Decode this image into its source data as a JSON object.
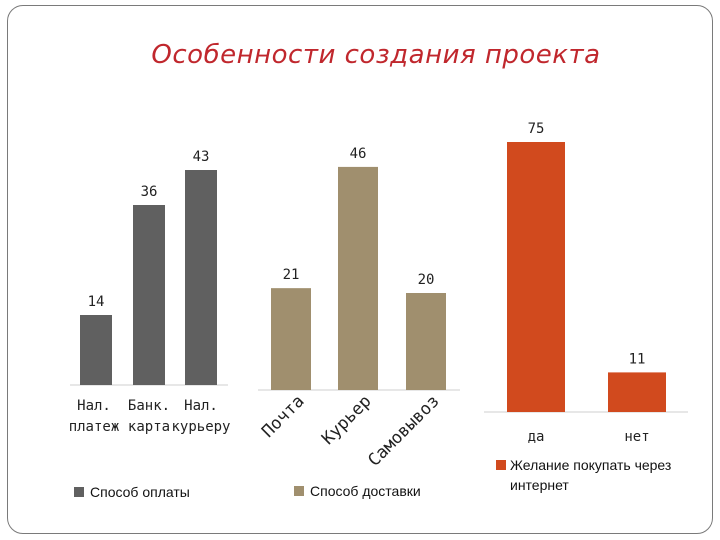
{
  "title": "Особенности создания проекта",
  "chart_data": [
    {
      "type": "bar",
      "categories": [
        [
          "Нал.",
          "платеж"
        ],
        [
          "Банк.",
          "карта"
        ],
        [
          "Нал.",
          "курьеру"
        ]
      ],
      "values": [
        14,
        36,
        43
      ],
      "legend": "Способ оплаты",
      "color": "#606060",
      "ylim": [
        0,
        80
      ]
    },
    {
      "type": "bar",
      "categories": [
        "Почта",
        "Курьер",
        "Самовывоз"
      ],
      "values": [
        21,
        46,
        20
      ],
      "legend": "Способ доставки",
      "color": "#a08f6e",
      "ylim": [
        0,
        80
      ]
    },
    {
      "type": "bar",
      "categories": [
        "да",
        "нет"
      ],
      "values": [
        75,
        11
      ],
      "legend": [
        "Желание покупать через",
        "интернет"
      ],
      "color": "#d14a1e",
      "ylim": [
        0,
        80
      ]
    }
  ]
}
